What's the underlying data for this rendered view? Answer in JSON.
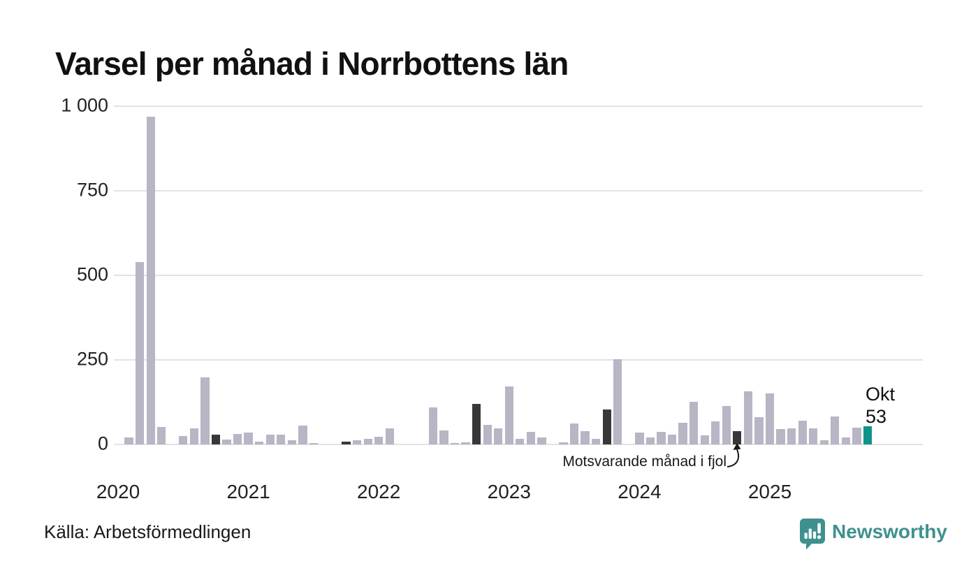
{
  "title": "Varsel per månad i Norrbottens län",
  "source": "Källa: Arbetsförmedlingen",
  "branding": {
    "name": "Newsworthy",
    "color": "#3e918e"
  },
  "annotation": {
    "text": "Motsvarande månad i fjol",
    "points_to": "2024-10"
  },
  "latest_label": {
    "month": "Okt",
    "value": "53"
  },
  "colors": {
    "bar": "#b8b5c4",
    "highlight_fjol": "#3a373b",
    "current": "#0e938b",
    "grid": "#e2e2e8",
    "text": "#191919"
  },
  "chart_data": {
    "type": "bar",
    "title": "Varsel per månad i Norrbottens län",
    "xlabel": "",
    "ylabel": "",
    "ylim": [
      0,
      1000
    ],
    "grid": "horizontal",
    "legend_position": "none",
    "y_ticks": [
      0,
      250,
      500,
      750,
      1000
    ],
    "y_tick_labels": [
      "0",
      "250",
      "500",
      "750",
      "1 000"
    ],
    "x_tick_labels": [
      "2020",
      "2021",
      "2022",
      "2023",
      "2024",
      "2025"
    ],
    "months": [
      "2020-01",
      "2020-02",
      "2020-03",
      "2020-04",
      "2020-05",
      "2020-06",
      "2020-07",
      "2020-08",
      "2020-09",
      "2020-10",
      "2020-11",
      "2020-12",
      "2021-01",
      "2021-02",
      "2021-03",
      "2021-04",
      "2021-05",
      "2021-06",
      "2021-07",
      "2021-08",
      "2021-09",
      "2021-10",
      "2021-11",
      "2021-12",
      "2022-01",
      "2022-02",
      "2022-03",
      "2022-04",
      "2022-05",
      "2022-06",
      "2022-07",
      "2022-08",
      "2022-09",
      "2022-10",
      "2022-11",
      "2022-12",
      "2023-01",
      "2023-02",
      "2023-03",
      "2023-04",
      "2023-05",
      "2023-06",
      "2023-07",
      "2023-08",
      "2023-09",
      "2023-10",
      "2023-11",
      "2023-12",
      "2024-01",
      "2024-02",
      "2024-03",
      "2024-04",
      "2024-05",
      "2024-06",
      "2024-07",
      "2024-08",
      "2024-09",
      "2024-10",
      "2024-11",
      "2024-12",
      "2025-01",
      "2025-02",
      "2025-03",
      "2025-04",
      "2025-05",
      "2025-06",
      "2025-07",
      "2025-08",
      "2025-09",
      "2025-10"
    ],
    "values": [
      0,
      21,
      540,
      970,
      52,
      0,
      24,
      48,
      198,
      29,
      15,
      32,
      36,
      8,
      29,
      29,
      13,
      56,
      5,
      0,
      0,
      8,
      12,
      17,
      22,
      47,
      0,
      0,
      0,
      109,
      41,
      5,
      7,
      119,
      58,
      47,
      171,
      17,
      37,
      21,
      0,
      6,
      62,
      39,
      16,
      103,
      253,
      0,
      35,
      21,
      37,
      30,
      65,
      126,
      26,
      69,
      114,
      40,
      157,
      81,
      150,
      45,
      48,
      70,
      47,
      12,
      83,
      21,
      50,
      53
    ],
    "fjol_indices": [
      9,
      21,
      33,
      45,
      57
    ],
    "current_index": 69,
    "series_name": "Varsel"
  }
}
